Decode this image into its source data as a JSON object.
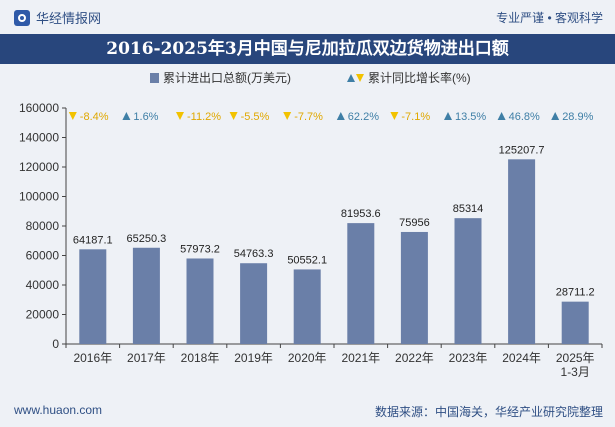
{
  "header": {
    "brand": "华经情报网",
    "tagline": "专业严谨 • 客观科学"
  },
  "footer": {
    "website": "www.huaon.com",
    "source": "数据来源：中国海关，华经产业研究院整理"
  },
  "colors": {
    "bar": "#6a7fa8",
    "title_bg": "#28467c",
    "up": "#3f7fa6",
    "down": "#f2c200"
  },
  "chart_data": {
    "type": "bar",
    "title": "2016-2025年3月中国与尼加拉瓜双边货物进出口额",
    "categories": [
      "2016年",
      "2017年",
      "2018年",
      "2019年",
      "2020年",
      "2021年",
      "2022年",
      "2023年",
      "2024年",
      "2025年\n1-3月"
    ],
    "series": [
      {
        "name": "累计进出口总额(万美元)",
        "type": "bar",
        "values": [
          64187.1,
          65250.3,
          57973.2,
          54763.3,
          50552.1,
          81953.6,
          75956,
          85314,
          125207.7,
          28711.2
        ],
        "labels": [
          "64187.1",
          "65250.3",
          "57973.2",
          "54763.3",
          "50552.1",
          "81953.6",
          "75956",
          "85314",
          "125207.7",
          "28711.2"
        ]
      },
      {
        "name": "累计同比增长率(%)",
        "type": "growth",
        "values": [
          -8.4,
          1.6,
          -11.2,
          -5.5,
          -7.7,
          62.2,
          -7.1,
          13.5,
          46.8,
          28.9
        ],
        "labels": [
          "-8.4%",
          "1.6%",
          "-11.2%",
          "-5.5%",
          "-7.7%",
          "62.2%",
          "-7.1%",
          "13.5%",
          "46.8%",
          "28.9%"
        ]
      }
    ],
    "yticks": [
      "0",
      "20000",
      "40000",
      "60000",
      "80000",
      "100000",
      "120000",
      "140000",
      "160000"
    ],
    "ylim": [
      0,
      160000
    ],
    "legend_position": "top-center",
    "grid": false
  }
}
